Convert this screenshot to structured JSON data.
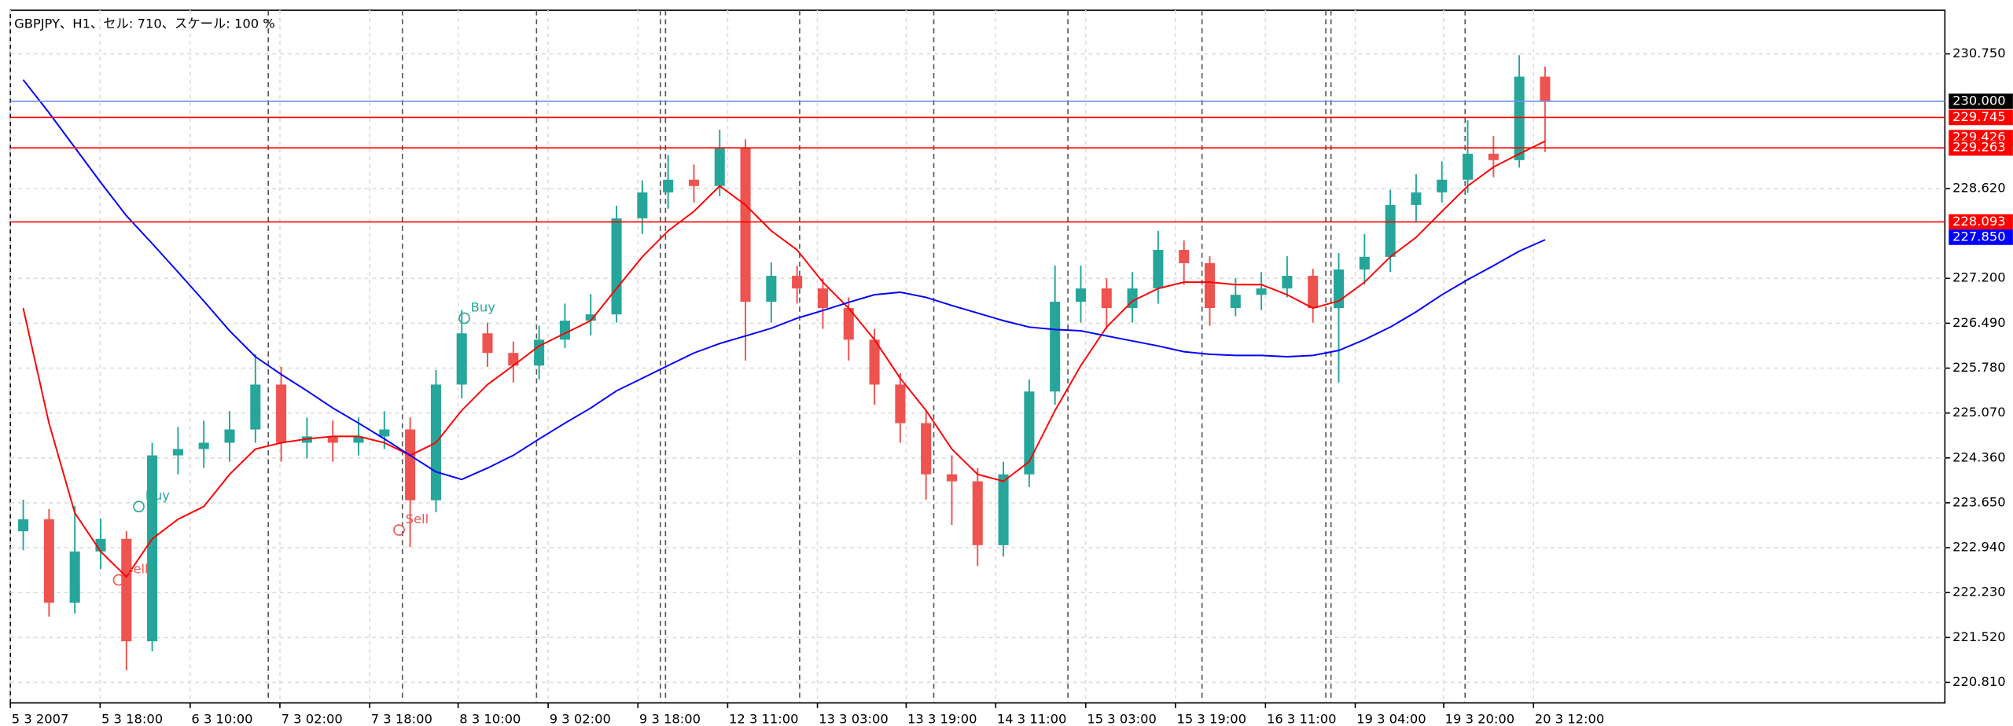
{
  "chart_data": {
    "type": "candlestick",
    "title": "GBPJPY、H1、セル: 710、スケール: 100 %",
    "up_color": "#26a69a",
    "down_color": "#ef5350",
    "grid": true,
    "xlim": [
      0,
      75
    ],
    "ylim": [
      220.485,
      231.44
    ],
    "yticks": [
      {
        "value": 230.75,
        "label": "230.750"
      },
      {
        "value": 228.62,
        "label": "228.620"
      },
      {
        "value": 227.2,
        "label": "227.200"
      },
      {
        "value": 226.49,
        "label": "226.490"
      },
      {
        "value": 225.78,
        "label": "225.780"
      },
      {
        "value": 225.07,
        "label": "225.070"
      },
      {
        "value": 224.36,
        "label": "224.360"
      },
      {
        "value": 223.65,
        "label": "223.650"
      },
      {
        "value": 222.94,
        "label": "222.940"
      },
      {
        "value": 222.23,
        "label": "222.230"
      },
      {
        "value": 221.52,
        "label": "221.520"
      },
      {
        "value": 220.81,
        "label": "220.810"
      }
    ],
    "xticks": [
      {
        "value": 0,
        "label": "5 3 2007"
      },
      {
        "value": 3.48,
        "label": "5 3 18:00"
      },
      {
        "value": 6.97,
        "label": "6 3 10:00"
      },
      {
        "value": 10.45,
        "label": "7 3 02:00"
      },
      {
        "value": 13.93,
        "label": "7 3 18:00"
      },
      {
        "value": 17.36,
        "label": "8 3 10:00"
      },
      {
        "value": 20.85,
        "label": "9 3 02:00"
      },
      {
        "value": 24.33,
        "label": "9 3 18:00"
      },
      {
        "value": 27.81,
        "label": "12 3 11:00"
      },
      {
        "value": 31.29,
        "label": "13 3 03:00"
      },
      {
        "value": 34.73,
        "label": "13 3 19:00"
      },
      {
        "value": 38.2,
        "label": "14 3 11:00"
      },
      {
        "value": 41.69,
        "label": "15 3 03:00"
      },
      {
        "value": 45.17,
        "label": "15 3 19:00"
      },
      {
        "value": 48.66,
        "label": "16 3 11:00"
      },
      {
        "value": 52.14,
        "label": "19 3 04:00"
      },
      {
        "value": 55.57,
        "label": "19 3 20:00"
      },
      {
        "value": 59.05,
        "label": "20 3 12:00"
      }
    ],
    "separators": [
      10,
      15.2,
      20.4,
      25.2,
      25.4,
      30.6,
      35.8,
      41,
      46.2,
      51,
      51.2,
      56.4
    ],
    "open": [
      223.2,
      223.39,
      222.07,
      222.88,
      223.08,
      221.46,
      224.4,
      224.5,
      224.6,
      224.81,
      225.52,
      224.6,
      224.7,
      224.6,
      224.7,
      224.81,
      223.69,
      225.52,
      226.33,
      226.02,
      225.82,
      226.23,
      226.53,
      226.63,
      228.15,
      228.56,
      228.76,
      228.66,
      229.27,
      226.83,
      227.24,
      227.04,
      226.73,
      226.23,
      225.52,
      224.91,
      224.1,
      223.99,
      222.98,
      224.1,
      225.41,
      226.83,
      227.04,
      226.73,
      227.04,
      227.65,
      227.44,
      226.73,
      226.94,
      227.04,
      227.24,
      226.73,
      227.34,
      227.54,
      228.36,
      228.56,
      228.76,
      229.17,
      229.07,
      230.39
    ],
    "high": [
      223.7,
      223.55,
      223.6,
      223.4,
      223.2,
      224.6,
      224.85,
      224.95,
      225.1,
      226.0,
      225.8,
      225.0,
      224.95,
      225.0,
      225.1,
      225.0,
      225.75,
      226.7,
      226.5,
      226.2,
      226.45,
      226.8,
      226.95,
      228.35,
      228.75,
      229.15,
      229.0,
      229.55,
      229.4,
      227.45,
      227.4,
      227.2,
      226.9,
      226.4,
      225.7,
      225.1,
      224.4,
      224.2,
      224.3,
      225.6,
      227.4,
      227.4,
      227.2,
      227.3,
      227.95,
      227.8,
      227.55,
      227.2,
      227.3,
      227.55,
      227.35,
      227.6,
      227.9,
      228.6,
      228.85,
      229.05,
      229.7,
      229.45,
      230.73,
      230.55
    ],
    "low": [
      222.9,
      221.85,
      221.9,
      222.6,
      221.0,
      221.3,
      224.1,
      224.2,
      224.3,
      224.6,
      224.3,
      224.35,
      224.3,
      224.4,
      224.5,
      222.95,
      223.5,
      225.3,
      225.8,
      225.55,
      225.6,
      226.1,
      226.3,
      226.5,
      227.9,
      228.3,
      228.4,
      228.5,
      225.9,
      226.5,
      226.8,
      226.4,
      225.9,
      225.2,
      224.6,
      223.7,
      223.3,
      222.65,
      222.8,
      223.9,
      225.2,
      226.5,
      226.4,
      226.5,
      226.8,
      227.1,
      226.45,
      226.6,
      226.7,
      226.9,
      226.5,
      225.55,
      227.1,
      227.3,
      228.1,
      228.4,
      228.55,
      228.8,
      228.95,
      229.2
    ],
    "close": [
      223.39,
      222.07,
      222.88,
      223.08,
      221.46,
      224.4,
      224.5,
      224.6,
      224.81,
      225.52,
      224.6,
      224.7,
      224.6,
      224.7,
      224.81,
      223.69,
      225.52,
      226.33,
      226.02,
      225.82,
      226.23,
      226.53,
      226.63,
      228.15,
      228.56,
      228.76,
      228.66,
      229.27,
      226.83,
      227.24,
      227.04,
      226.73,
      226.23,
      225.52,
      224.91,
      224.1,
      223.99,
      222.98,
      224.1,
      225.41,
      226.83,
      227.04,
      226.73,
      227.04,
      227.65,
      227.44,
      226.73,
      226.94,
      227.04,
      227.24,
      226.73,
      227.34,
      227.54,
      228.36,
      228.56,
      228.76,
      229.17,
      229.07,
      230.39,
      230.0
    ],
    "lines": [
      {
        "color": "#ff0000",
        "values": [
          226.73,
          224.91,
          223.49,
          222.88,
          222.48,
          223.08,
          223.39,
          223.59,
          224.1,
          224.5,
          224.6,
          224.66,
          224.7,
          224.7,
          224.6,
          224.4,
          224.6,
          225.11,
          225.52,
          225.82,
          226.13,
          226.33,
          226.53,
          227.04,
          227.54,
          227.95,
          228.26,
          228.66,
          228.36,
          227.95,
          227.65,
          227.14,
          226.73,
          226.23,
          225.62,
          225.11,
          224.5,
          224.1,
          223.99,
          224.3,
          225.11,
          225.82,
          226.43,
          226.84,
          227.04,
          227.14,
          227.14,
          227.1,
          227.1,
          226.94,
          226.73,
          226.84,
          227.14,
          227.54,
          227.85,
          228.26,
          228.66,
          228.96,
          229.17,
          229.37
        ]
      },
      {
        "color": "#0000ff",
        "values": [
          230.34,
          229.82,
          229.27,
          228.72,
          228.19,
          227.75,
          227.3,
          226.84,
          226.37,
          225.96,
          225.68,
          225.42,
          225.15,
          224.91,
          224.66,
          224.4,
          224.14,
          224.02,
          224.2,
          224.4,
          224.66,
          224.91,
          225.15,
          225.42,
          225.62,
          225.82,
          226.02,
          226.17,
          226.29,
          226.41,
          226.57,
          226.69,
          226.82,
          226.94,
          226.98,
          226.9,
          226.77,
          226.65,
          226.53,
          226.43,
          226.39,
          226.37,
          226.29,
          226.21,
          226.13,
          226.04,
          226.0,
          225.98,
          225.98,
          225.96,
          225.98,
          226.06,
          226.23,
          226.43,
          226.67,
          226.94,
          227.18,
          227.4,
          227.63,
          227.81
        ]
      }
    ],
    "price_levels": [
      {
        "value": 230.0,
        "label": "230.000",
        "line_color": "#6f8fe8",
        "label_color": "#000000"
      },
      {
        "value": 229.745,
        "label": "229.745",
        "line_color": "#ff0000",
        "label_color": "#ff0000"
      },
      {
        "value": 229.426,
        "label": "229.426",
        "line_color": null,
        "label_color": "#ff0000"
      },
      {
        "value": 229.263,
        "label": "229.263",
        "line_color": "#ff0000",
        "label_color": "#ff0000"
      },
      {
        "value": 228.093,
        "label": "228.093",
        "line_color": "#ff0000",
        "label_color": "#ff0000"
      },
      {
        "value": 227.85,
        "label": "227.850",
        "line_color": null,
        "label_color": "#0000ff"
      }
    ],
    "signals": [
      {
        "label": "Sell",
        "x": 4.2,
        "y": 222.43,
        "color": "#ef5350"
      },
      {
        "label": "Buy",
        "x": 4.98,
        "y": 223.59,
        "color": "#26a69a"
      },
      {
        "label": "Sell",
        "x": 15.07,
        "y": 223.22,
        "color": "#ef5350"
      },
      {
        "label": "Buy",
        "x": 17.6,
        "y": 226.57,
        "color": "#26a69a"
      }
    ]
  }
}
